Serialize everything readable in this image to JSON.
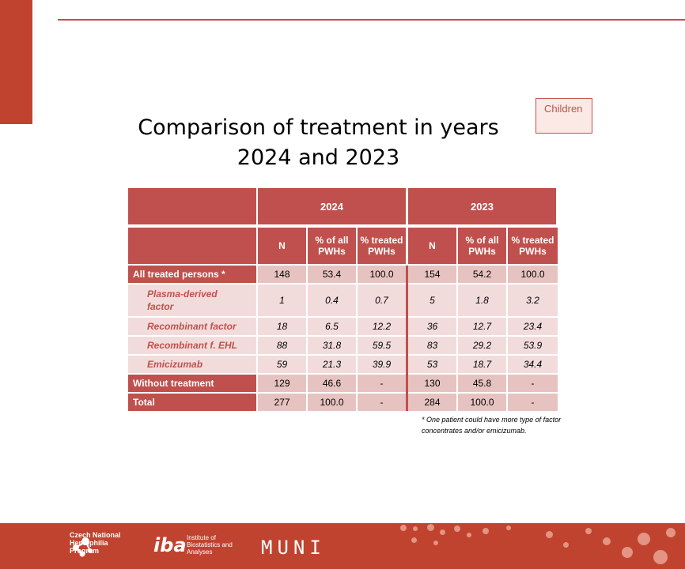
{
  "title_line1": "Comparison of treatment in years",
  "title_line2": "2024 and 2023",
  "badge": "Children",
  "table": {
    "year1": "2024",
    "year2": "2023",
    "col_n": "N",
    "col_pct_all": "% of all PWHs",
    "col_pct_treated": "% treated PWHs",
    "rows": [
      {
        "label": "All treated persons *",
        "y1": [
          "148",
          "53.4",
          "100.0"
        ],
        "y2": [
          "154",
          "54.2",
          "100.0"
        ]
      },
      {
        "label": "Plasma-derived factor",
        "y1": [
          "1",
          "0.4",
          "0.7"
        ],
        "y2": [
          "5",
          "1.8",
          "3.2"
        ]
      },
      {
        "label": "Recombinant factor",
        "y1": [
          "18",
          "6.5",
          "12.2"
        ],
        "y2": [
          "36",
          "12.7",
          "23.4"
        ]
      },
      {
        "label": "Recombinant f. EHL",
        "y1": [
          "88",
          "31.8",
          "59.5"
        ],
        "y2": [
          "83",
          "29.2",
          "53.9"
        ]
      },
      {
        "label": "Emicizumab",
        "y1": [
          "59",
          "21.3",
          "39.9"
        ],
        "y2": [
          "53",
          "18.7",
          "34.4"
        ]
      },
      {
        "label": "Without treatment",
        "y1": [
          "129",
          "46.6",
          "-"
        ],
        "y2": [
          "130",
          "45.8",
          "-"
        ]
      },
      {
        "label": "Total",
        "y1": [
          "277",
          "100.0",
          "-"
        ],
        "y2": [
          "284",
          "100.0",
          "-"
        ]
      }
    ]
  },
  "footnote": "* One patient could have more type of factor concentrates and/or emicizumab.",
  "footer": {
    "logo1": "Czech National Hemophilia Program",
    "logo2_mark": "iba",
    "logo2_text": "Institute of Biostatistics and Analyses",
    "logo3": "MUNI"
  }
}
